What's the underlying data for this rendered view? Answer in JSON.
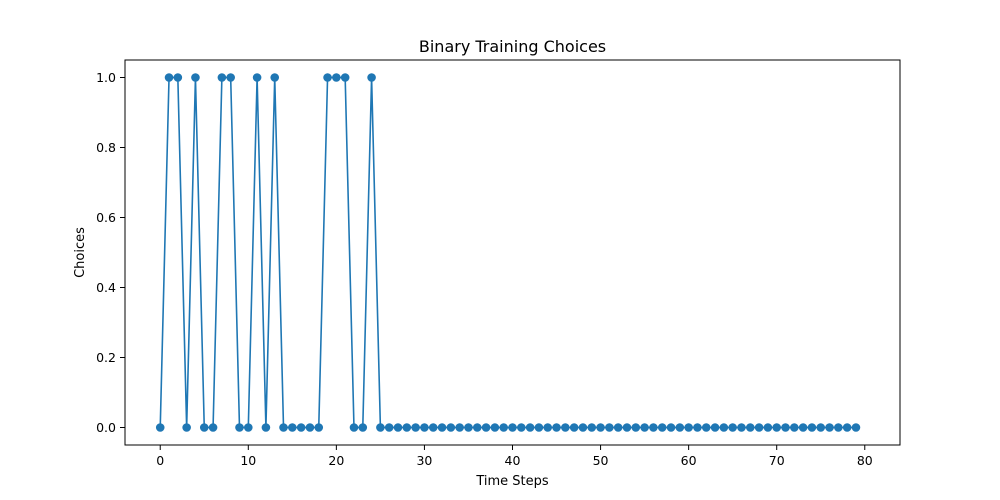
{
  "chart_data": {
    "type": "line",
    "title": "Binary Training Choices",
    "xlabel": "Time Steps",
    "ylabel": "Choices",
    "xlim": [
      -4,
      84
    ],
    "ylim": [
      -0.05,
      1.05
    ],
    "x_ticks": [
      0,
      10,
      20,
      30,
      40,
      50,
      60,
      70,
      80
    ],
    "y_ticks": [
      0.0,
      0.2,
      0.4,
      0.6,
      0.8,
      1.0
    ],
    "x_tick_labels": [
      "0",
      "10",
      "20",
      "30",
      "40",
      "50",
      "60",
      "70",
      "80"
    ],
    "y_tick_labels": [
      "0.0",
      "0.2",
      "0.4",
      "0.6",
      "0.8",
      "1.0"
    ],
    "grid": false,
    "color": "#1f77b4",
    "marker": "circle",
    "x": [
      0,
      1,
      2,
      3,
      4,
      5,
      6,
      7,
      8,
      9,
      10,
      11,
      12,
      13,
      14,
      15,
      16,
      17,
      18,
      19,
      20,
      21,
      22,
      23,
      24,
      25,
      26,
      27,
      28,
      29,
      30,
      31,
      32,
      33,
      34,
      35,
      36,
      37,
      38,
      39,
      40,
      41,
      42,
      43,
      44,
      45,
      46,
      47,
      48,
      49,
      50,
      51,
      52,
      53,
      54,
      55,
      56,
      57,
      58,
      59,
      60,
      61,
      62,
      63,
      64,
      65,
      66,
      67,
      68,
      69,
      70,
      71,
      72,
      73,
      74,
      75,
      76,
      77,
      78,
      79
    ],
    "values": [
      0,
      1,
      1,
      0,
      1,
      0,
      0,
      1,
      1,
      0,
      0,
      1,
      0,
      1,
      0,
      0,
      0,
      0,
      0,
      1,
      1,
      1,
      0,
      0,
      1,
      0,
      0,
      0,
      0,
      0,
      0,
      0,
      0,
      0,
      0,
      0,
      0,
      0,
      0,
      0,
      0,
      0,
      0,
      0,
      0,
      0,
      0,
      0,
      0,
      0,
      0,
      0,
      0,
      0,
      0,
      0,
      0,
      0,
      0,
      0,
      0,
      0,
      0,
      0,
      0,
      0,
      0,
      0,
      0,
      0,
      0,
      0,
      0,
      0,
      0,
      0,
      0,
      0,
      0,
      0
    ]
  }
}
